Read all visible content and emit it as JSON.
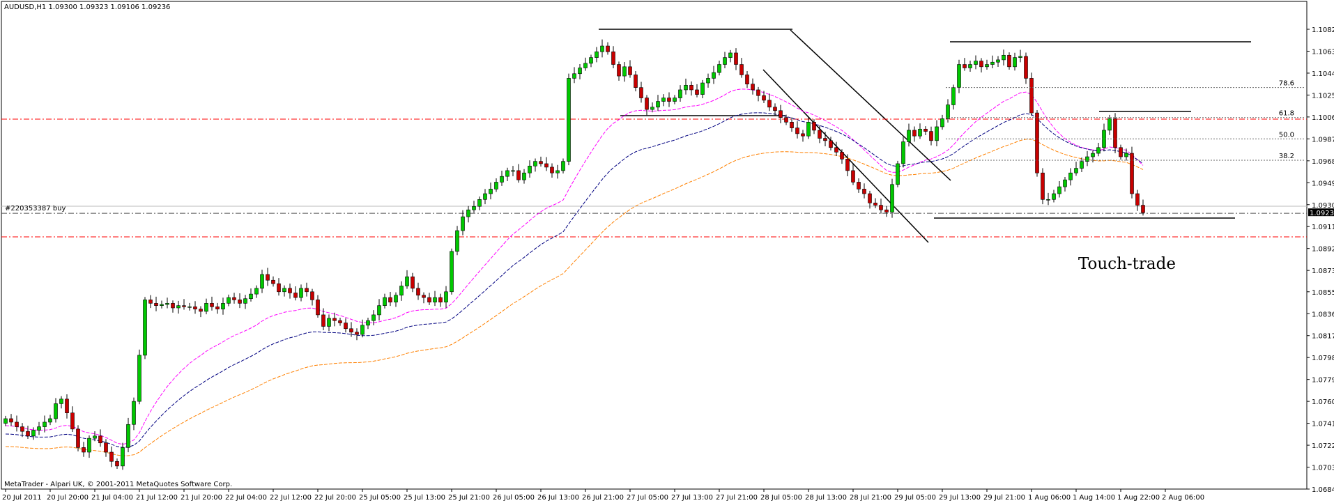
{
  "header": {
    "symbol_line": "AUDUSD,H1  1.09300 1.09323 1.09106 1.09236"
  },
  "footer": {
    "copyright": "MetaTrader - Alpari UK, © 2001-2011 MetaQuotes Software Corp."
  },
  "order": {
    "label": "#220353387 buy",
    "price": 1.0923
  },
  "current_price": {
    "label": "1.09236",
    "value": 1.09236
  },
  "annotation": {
    "text": "Touch-trade"
  },
  "fib_levels": [
    {
      "label": "78.6",
      "value": 1.1032
    },
    {
      "label": "61.8",
      "value": 1.1006
    },
    {
      "label": "50.0",
      "value": 1.09875
    },
    {
      "label": "38.2",
      "value": 1.0969
    }
  ],
  "colors": {
    "bull": "#00c800",
    "bear": "#c80000",
    "wick": "#000000",
    "ma_fast": "#ff00ff",
    "ma_mid": "#000080",
    "ma_slow": "#ff8000",
    "red_line": "#ff0000"
  },
  "chart_data": {
    "type": "candlestick",
    "symbol": "AUDUSD",
    "timeframe": "H1",
    "ylim": [
      1.0684,
      1.1097
    ],
    "y_ticks": [
      "1.10825",
      "1.10635",
      "1.10445",
      "1.10255",
      "1.10065",
      "1.09875",
      "1.09685",
      "1.09495",
      "1.09305",
      "1.09115",
      "1.08925",
      "1.08735",
      "1.08550",
      "1.08360",
      "1.08170",
      "1.07980",
      "1.07790",
      "1.07600",
      "1.07410",
      "1.07220",
      "1.07030",
      "1.06840"
    ],
    "x_ticks": [
      {
        "label": "20 Jul 2011",
        "i": 0
      },
      {
        "label": "20 Jul 20:00",
        "i": 8
      },
      {
        "label": "21 Jul 04:00",
        "i": 16
      },
      {
        "label": "21 Jul 12:00",
        "i": 24
      },
      {
        "label": "21 Jul 20:00",
        "i": 32
      },
      {
        "label": "22 Jul 04:00",
        "i": 40
      },
      {
        "label": "22 Jul 12:00",
        "i": 48
      },
      {
        "label": "22 Jul 20:00",
        "i": 56
      },
      {
        "label": "25 Jul 05:00",
        "i": 64
      },
      {
        "label": "25 Jul 13:00",
        "i": 72
      },
      {
        "label": "25 Jul 21:00",
        "i": 80
      },
      {
        "label": "26 Jul 05:00",
        "i": 88
      },
      {
        "label": "26 Jul 13:00",
        "i": 96
      },
      {
        "label": "26 Jul 21:00",
        "i": 104
      },
      {
        "label": "27 Jul 05:00",
        "i": 112
      },
      {
        "label": "27 Jul 13:00",
        "i": 120
      },
      {
        "label": "27 Jul 21:00",
        "i": 128
      },
      {
        "label": "28 Jul 05:00",
        "i": 136
      },
      {
        "label": "28 Jul 13:00",
        "i": 144
      },
      {
        "label": "28 Jul 21:00",
        "i": 152
      },
      {
        "label": "29 Jul 05:00",
        "i": 160
      },
      {
        "label": "29 Jul 13:00",
        "i": 168
      },
      {
        "label": "29 Jul 21:00",
        "i": 176
      },
      {
        "label": "1 Aug 06:00",
        "i": 184
      },
      {
        "label": "1 Aug 14:00",
        "i": 192
      },
      {
        "label": "1 Aug 22:00",
        "i": 200
      },
      {
        "label": "2 Aug 06:00",
        "i": 208
      }
    ],
    "close": [
      1.0745,
      1.0742,
      1.0738,
      1.0734,
      1.073,
      1.0735,
      1.0738,
      1.0742,
      1.0745,
      1.0758,
      1.0762,
      1.075,
      1.0736,
      1.072,
      1.0716,
      1.0728,
      1.073,
      1.0724,
      1.0716,
      1.0708,
      1.0704,
      1.072,
      1.074,
      1.076,
      1.08,
      1.0848,
      1.0845,
      1.0843,
      1.0844,
      1.0845,
      1.0841,
      1.0843,
      1.0842,
      1.0842,
      1.084,
      1.0838,
      1.0845,
      1.0842,
      1.084,
      1.0845,
      1.085,
      1.0848,
      1.0845,
      1.0849,
      1.0853,
      1.0858,
      1.087,
      1.0865,
      1.0862,
      1.0855,
      1.0858,
      1.0854,
      1.085,
      1.0858,
      1.0855,
      1.0848,
      1.0835,
      1.0825,
      1.0832,
      1.083,
      1.0828,
      1.0823,
      1.082,
      1.0818,
      1.0826,
      1.083,
      1.0835,
      1.0843,
      1.085,
      1.0846,
      1.0852,
      1.086,
      1.0868,
      1.0858,
      1.0852,
      1.085,
      1.0846,
      1.085,
      1.0846,
      1.0855,
      1.089,
      1.0908,
      1.092,
      1.0926,
      1.0929,
      1.0935,
      1.094,
      1.0944,
      1.095,
      1.0955,
      1.096,
      1.096,
      1.0952,
      1.0958,
      1.0964,
      1.0968,
      1.0966,
      1.0963,
      1.0958,
      1.096,
      1.0968,
      1.104,
      1.1044,
      1.1049,
      1.1053,
      1.1058,
      1.1063,
      1.1068,
      1.1063,
      1.1052,
      1.1042,
      1.105,
      1.1043,
      1.1032,
      1.1023,
      1.1013,
      1.1015,
      1.102,
      1.1023,
      1.102,
      1.1023,
      1.103,
      1.1034,
      1.103,
      1.1026,
      1.1036,
      1.104,
      1.1045,
      1.1052,
      1.1058,
      1.1062,
      1.1052,
      1.1043,
      1.1035,
      1.103,
      1.1025,
      1.1021,
      1.1015,
      1.1012,
      1.1006,
      1.1002,
      1.0997,
      1.0992,
      1.099,
      1.1002,
      1.0995,
      1.0988,
      1.0986,
      1.098,
      1.0976,
      1.097,
      1.096,
      1.095,
      1.0944,
      1.094,
      1.0932,
      1.093,
      1.0926,
      1.0924,
      1.0948,
      1.0966,
      1.0985,
      1.0995,
      1.099,
      1.0996,
      1.0994,
      1.0986,
      1.0998,
      1.1005,
      1.1017,
      1.1032,
      1.1052,
      1.1049,
      1.1052,
      1.1055,
      1.105,
      1.1052,
      1.1054,
      1.1056,
      1.106,
      1.105,
      1.1058,
      1.1059,
      1.104,
      1.101,
      1.0958,
      1.0935,
      1.0935,
      1.094,
      1.0946,
      1.0952,
      1.0958,
      1.0962,
      1.0968,
      1.0972,
      1.0975,
      1.098,
      1.0995,
      1.1005,
      1.098,
      1.0972,
      1.0975,
      1.094,
      1.093,
      1.09236
    ]
  }
}
